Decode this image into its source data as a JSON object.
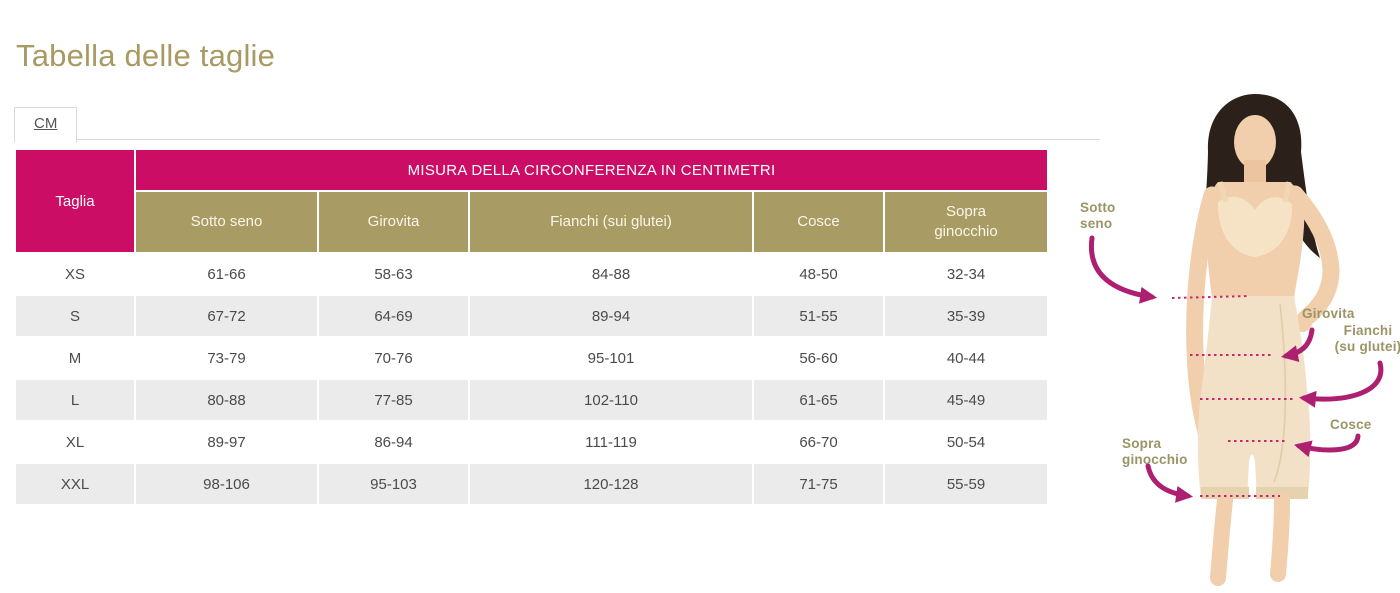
{
  "page": {
    "title": "Tabella delle taglie",
    "tab_label": "CM"
  },
  "table": {
    "corner_header": "Taglia",
    "span_header": "MISURA DELLA CIRCONFERENZA IN CENTIMETRI",
    "columns": [
      "Sotto seno",
      "Girovita",
      "Fianchi (sui glutei)",
      "Cosce",
      "Sopra ginocchio"
    ],
    "rows": [
      {
        "size": "XS",
        "values": [
          "61-66",
          "58-63",
          "84-88",
          "48-50",
          "32-34"
        ]
      },
      {
        "size": "S",
        "values": [
          "67-72",
          "64-69",
          "89-94",
          "51-55",
          "35-39"
        ]
      },
      {
        "size": "M",
        "values": [
          "73-79",
          "70-76",
          "95-101",
          "56-60",
          "40-44"
        ]
      },
      {
        "size": "L",
        "values": [
          "80-88",
          "77-85",
          "102-110",
          "61-65",
          "45-49"
        ]
      },
      {
        "size": "XL",
        "values": [
          "89-97",
          "86-94",
          "111-119",
          "66-70",
          "50-54"
        ]
      },
      {
        "size": "XXL",
        "values": [
          "98-106",
          "95-103",
          "120-128",
          "71-75",
          "55-59"
        ]
      }
    ]
  },
  "figure": {
    "labels": {
      "sotto_seno": "Sotto seno",
      "girovita": "Girovita",
      "fianchi": "Fianchi (su glutei)",
      "cosce": "Cosce",
      "sopra_ginocchio": "Sopra ginocchio"
    }
  },
  "colors": {
    "title": "#a79a62",
    "header_pink": "#cb0d65",
    "header_olive": "#a89b63",
    "row_alt": "#ebebeb",
    "arrow_magenta": "#ad2071",
    "callout_olive": "#9a9466"
  }
}
